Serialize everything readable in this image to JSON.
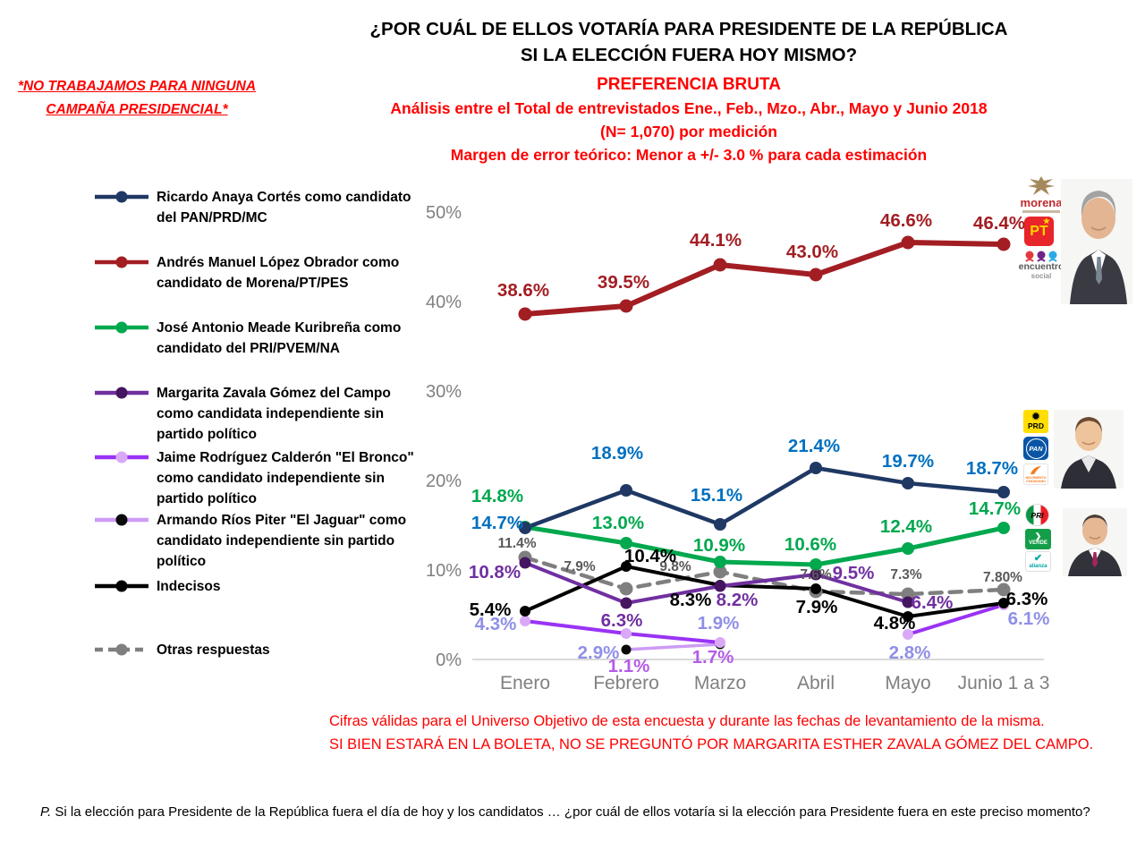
{
  "disclaimer": {
    "line1": "*NO TRABAJAMOS PARA NINGUNA",
    "line2": "CAMPAÑA PRESIDENCIAL*"
  },
  "header": {
    "title_line1": "¿POR CUÁL DE ELLOS VOTARÍA PARA PRESIDENTE DE LA REPÚBLICA",
    "title_line2": "SI LA ELECCIÓN FUERA HOY MISMO?",
    "subtitle": "PREFERENCIA BRUTA",
    "analysis_line1": "Análisis entre el Total de entrevistados Ene., Feb., Mzo., Abr., Mayo y Junio 2018",
    "analysis_line2": "(N= 1,070) por medición",
    "margin_line": "Margen de error teórico: Menor a +/- 3.0 % para cada estimación"
  },
  "chart_data": {
    "type": "line",
    "title": "PREFERENCIA BRUTA",
    "categories": [
      "Enero",
      "Febrero",
      "Marzo",
      "Abril",
      "Mayo",
      "Junio 1 a 3"
    ],
    "y_axis": {
      "min": 0,
      "max": 50,
      "ticks": [
        "0%",
        "10%",
        "20%",
        "30%",
        "40%",
        "50%"
      ],
      "grid": false
    },
    "legend_position": "left",
    "series": [
      {
        "id": "anaya",
        "name": "Ricardo Anaya Cortés como candidato del PAN/PRD/MC",
        "color": "#1F3864",
        "marker_color": "#1F3864",
        "label_color": "#0070C0",
        "dashed": false,
        "values": [
          14.7,
          18.9,
          15.1,
          21.4,
          19.7,
          18.7
        ],
        "labels": [
          "14.7%",
          "18.9%",
          "15.1%",
          "21.4%",
          "19.7%",
          "18.7%"
        ]
      },
      {
        "id": "amlo",
        "name": "Andrés Manuel López Obrador como candidato de Morena/PT/PES",
        "color": "#A21E23",
        "marker_color": "#A21E23",
        "label_color": "#A21E23",
        "dashed": false,
        "values": [
          38.6,
          39.5,
          44.1,
          43.0,
          46.6,
          46.4
        ],
        "labels": [
          "38.6%",
          "39.5%",
          "44.1%",
          "43.0%",
          "46.6%",
          "46.4%"
        ]
      },
      {
        "id": "meade",
        "name": "José Antonio Meade Kuribreña como candidato del PRI/PVEM/NA",
        "color": "#00A84E",
        "marker_color": "#00A84E",
        "label_color": "#00A84E",
        "dashed": false,
        "values": [
          14.8,
          13.0,
          10.9,
          10.6,
          12.4,
          14.7
        ],
        "labels": [
          "14.8%",
          "13.0%",
          "10.9%",
          "10.6%",
          "12.4%",
          "14.7%"
        ]
      },
      {
        "id": "zavala",
        "name": "Margarita Zavala Gómez del Campo como candidata independiente sin partido político",
        "color": "#7030A0",
        "marker_color": "#45155F",
        "label_color": "#7030A0",
        "dashed": false,
        "values": [
          10.8,
          6.3,
          8.2,
          9.5,
          6.4,
          null
        ],
        "labels": [
          "10.8%",
          "6.3%",
          "8.2%",
          "9.5%",
          "6.4%",
          ""
        ]
      },
      {
        "id": "bronco",
        "name": "Jaime Rodríguez Calderón \"El Bronco\" como candidato independiente sin partido político",
        "color": "#9933F5",
        "marker_color": "#D9A9F7",
        "label_color": "#8F8FE8",
        "dashed": false,
        "values": [
          4.3,
          2.9,
          1.9,
          null,
          2.8,
          6.1
        ],
        "labels": [
          "4.3%",
          "2.9%",
          "1.9%",
          "",
          "2.8%",
          "6.1%"
        ]
      },
      {
        "id": "jaguar",
        "name": "Armando Ríos Piter \"El Jaguar\" como candidato independiente sin partido político",
        "color": "#CD9CF5",
        "marker_color": "#0A0A0A",
        "label_color": "#B55CE6",
        "dashed": false,
        "values": [
          null,
          1.1,
          1.7,
          null,
          null,
          null
        ],
        "labels": [
          "",
          "1.1%",
          "1.7%",
          "",
          "",
          ""
        ]
      },
      {
        "id": "indecisos",
        "name": "Indecisos",
        "color": "#000000",
        "marker_color": "#000000",
        "label_color": "#000000",
        "dashed": false,
        "values": [
          5.4,
          10.4,
          8.3,
          7.9,
          4.8,
          6.3
        ],
        "labels": [
          "5.4%",
          "10.4%",
          "8.3%",
          "7.9%",
          "4.8%",
          "6.3%"
        ]
      },
      {
        "id": "otras",
        "name": "Otras respuestas",
        "color": "#7F7F7F",
        "marker_color": "#7F7F7F",
        "label_color": "#595959",
        "dashed": true,
        "values": [
          11.4,
          7.9,
          9.8,
          7.6,
          7.3,
          7.8
        ],
        "labels": [
          "11.4%",
          "7.9%",
          "9.8%",
          "7.6%",
          "7.3%",
          "7.80%"
        ]
      }
    ]
  },
  "media": {
    "amlo_logos": {
      "morena": "morena",
      "pt": "PT",
      "pt_star": "★",
      "es_line1": "encuentro",
      "es_line2": "social"
    },
    "anaya_logos": {
      "prd": "PRD",
      "prd_sun": "✹",
      "pan": "PAN",
      "mc_bird": "➤",
      "mc": "MOVIMIENTO CIUDADANO"
    },
    "meade_logos": {
      "pri": "PRI",
      "verde_bird": "❯",
      "verde": "VERDE",
      "alianza_check": "✔",
      "alianza": "alianza"
    }
  },
  "footnotes": {
    "red_line1": "Cifras válidas para el Universo Objetivo de esta encuesta y durante las fechas de levantamiento de la misma.",
    "red_line2": "SI BIEN ESTARÁ EN LA BOLETA, NO SE PREGUNTÓ POR MARGARITA ESTHER ZAVALA GÓMEZ DEL CAMPO.",
    "question_prefix": "P.",
    "question_body": " Si la elección para Presidente de la República fuera el día de hoy y los candidatos … ¿por cuál de ellos votaría si la elección para Presidente fuera en este preciso momento?"
  }
}
